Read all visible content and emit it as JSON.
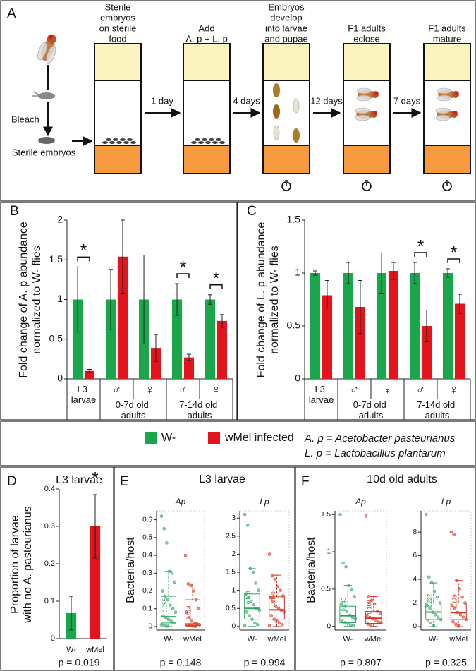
{
  "figure": {
    "panel_a": {
      "label": "A",
      "bleach": "Bleach",
      "sterile_embryos": "Sterile embryos",
      "steps": [
        [
          "Sterile",
          "embryos",
          "on sterile",
          "food"
        ],
        [
          "Add",
          "A. p + L. p"
        ],
        [
          "Embryos",
          "develop",
          "into larvae",
          "and pupae"
        ],
        [
          "F1 adults",
          "eclose"
        ],
        [
          "F1 adults",
          "mature"
        ]
      ],
      "arrows": [
        "1 day",
        "4 days",
        "12 days",
        "7 days"
      ]
    },
    "legend_notes": [
      "A. p = Acetobacter pasteurianus",
      "L. p = Lactobacillus plantarum"
    ]
  },
  "chart_data": [
    {
      "type": "bar",
      "panel_label": "B",
      "ylabel": [
        "Fold change of A. p abundance",
        "normalized to W- flies"
      ],
      "categories": [
        "L3 larvae",
        "♂",
        "♀",
        "♂",
        "♀"
      ],
      "groups": [
        {
          "label": "0-7d old adults",
          "members": [
            1,
            2
          ]
        },
        {
          "label": "7-14d old adults",
          "members": [
            3,
            4
          ]
        }
      ],
      "series": [
        {
          "name": "W-",
          "color": "#1aa64a",
          "values": [
            1,
            1,
            1,
            1,
            1
          ],
          "errors": [
            0.41,
            0.38,
            0.56,
            0.2,
            0.06
          ]
        },
        {
          "name": "wMel infected",
          "color": "#e3141b",
          "values": [
            0.1,
            1.54,
            0.39,
            0.27,
            0.73
          ],
          "errors": [
            0.02,
            0.46,
            0.17,
            0.04,
            0.08
          ]
        }
      ],
      "significance": [
        {
          "category": 0,
          "label": "*"
        },
        {
          "category": 3,
          "label": "*"
        },
        {
          "category": 4,
          "label": "*"
        }
      ],
      "ylim": [
        0,
        2
      ],
      "yticks": [
        0,
        0.5,
        1,
        1.5,
        2
      ]
    },
    {
      "type": "bar",
      "panel_label": "C",
      "ylabel": [
        "Fold change of L. p abundance",
        "normalized to W- flies"
      ],
      "categories": [
        "L3 larvae",
        "♂",
        "♀",
        "♂",
        "♀"
      ],
      "groups": [
        {
          "label": "0-7d old adults",
          "members": [
            1,
            2
          ]
        },
        {
          "label": "7-14d old adults",
          "members": [
            3,
            4
          ]
        }
      ],
      "series": [
        {
          "name": "W-",
          "color": "#1aa64a",
          "values": [
            1,
            1,
            1,
            1,
            1
          ],
          "errors": [
            0.02,
            0.1,
            0.19,
            0.1,
            0.04
          ]
        },
        {
          "name": "wMel infected",
          "color": "#e3141b",
          "values": [
            0.79,
            0.68,
            1.02,
            0.5,
            0.71
          ],
          "errors": [
            0.14,
            0.25,
            0.08,
            0.15,
            0.09
          ]
        }
      ],
      "significance": [
        {
          "category": 3,
          "label": "*"
        },
        {
          "category": 4,
          "label": "*"
        }
      ],
      "ylim": [
        0,
        1.5
      ],
      "yticks": [
        0,
        0.5,
        1,
        1.5
      ]
    },
    {
      "type": "bar",
      "panel_label": "D",
      "panel_title": "L3 larvae",
      "ylabel": [
        "Proportion of larvae",
        "with no A. pasteurianus"
      ],
      "categories": [
        "W-",
        "wMel"
      ],
      "values": [
        0.068,
        0.3
      ],
      "errors": [
        0.045,
        0.085
      ],
      "colors": [
        "#1aa64a",
        "#e3141b"
      ],
      "significance": [
        {
          "category": 1,
          "label": "*"
        }
      ],
      "ylim": [
        0,
        0.4
      ],
      "yticks": [
        0,
        0.1,
        0.2,
        0.3,
        0.4
      ],
      "note": "p = 0.019"
    },
    {
      "type": "box",
      "panel_label": "E",
      "panel_title": "L3 larvae",
      "ylabel": "Bacteria/host",
      "title": "Ap",
      "categories": [
        "W-",
        "wMel"
      ],
      "boxes": [
        {
          "color": "#2ca25f",
          "median": 0.055,
          "median_label": "0.055",
          "q1": 0.02,
          "q3": 0.17,
          "whisker_low": 0,
          "whisker_high": 0.31,
          "points": [
            0.62,
            0.55,
            0.47,
            0.31,
            0.3,
            0.25,
            0.2,
            0.17,
            0.15,
            0.12,
            0.1,
            0.08,
            0.06,
            0.05,
            0.04,
            0.03,
            0.02,
            0.01,
            0.005,
            0.002
          ]
        },
        {
          "color": "#d7301f",
          "median": 0.014,
          "median_label": "0.014",
          "q1": 0.005,
          "q3": 0.15,
          "whisker_low": 0,
          "whisker_high": 0.24,
          "points": [
            0.4,
            0.24,
            0.23,
            0.2,
            0.15,
            0.1,
            0.08,
            0.05,
            0.03,
            0.02,
            0.015,
            0.01,
            0.008,
            0.005,
            0.003,
            0.001
          ]
        }
      ],
      "ylim": [
        -0.02,
        0.65
      ],
      "yticks": [
        0,
        0.1,
        0.2,
        0.3,
        0.4,
        0.5,
        0.6
      ],
      "note": "p = 0.148"
    },
    {
      "type": "box",
      "title": "Lp",
      "categories": [
        "W-",
        "wMel"
      ],
      "boxes": [
        {
          "color": "#2ca25f",
          "median": 0.501,
          "median_label": "0.501",
          "q1": 0.2,
          "q3": 0.9,
          "whisker_low": 0,
          "whisker_high": 1.6,
          "points": [
            3.1,
            2.8,
            1.6,
            1.5,
            1.2,
            1.0,
            0.9,
            0.8,
            0.7,
            0.6,
            0.5,
            0.45,
            0.4,
            0.3,
            0.2,
            0.1,
            0.05,
            0.02
          ]
        },
        {
          "color": "#d7301f",
          "median": 0.46,
          "median_label": "0.460",
          "q1": 0.2,
          "q3": 0.82,
          "whisker_low": 0,
          "whisker_high": 1.42,
          "points": [
            2.0,
            1.4,
            1.3,
            1.1,
            1.0,
            0.85,
            0.8,
            0.7,
            0.55,
            0.5,
            0.45,
            0.4,
            0.3,
            0.2,
            0.15,
            0.1,
            0.05,
            0.02
          ]
        }
      ],
      "ylim": [
        -0.1,
        3.2
      ],
      "yticks": [
        0,
        0.5,
        1,
        1.5,
        2,
        2.5,
        3
      ],
      "note": "p = 0.994"
    },
    {
      "type": "box",
      "panel_label": "F",
      "panel_title": "10d old adults",
      "ylabel": "Bacteria/host",
      "title": "Ap",
      "categories": [
        "W-",
        "wMel"
      ],
      "boxes": [
        {
          "color": "#2ca25f",
          "median": 0.143,
          "median_label": "0.143",
          "q1": 0.05,
          "q3": 0.27,
          "whisker_low": 0,
          "whisker_high": 0.55,
          "points": [
            1.5,
            0.85,
            0.8,
            0.55,
            0.5,
            0.4,
            0.3,
            0.27,
            0.2,
            0.15,
            0.12,
            0.1,
            0.08,
            0.05,
            0.04,
            0.02,
            0.01
          ]
        },
        {
          "color": "#d7301f",
          "median": 0.108,
          "median_label": "0.108",
          "q1": 0.04,
          "q3": 0.2,
          "whisker_low": 0,
          "whisker_high": 0.4,
          "points": [
            1.48,
            0.4,
            0.35,
            0.3,
            0.2,
            0.18,
            0.15,
            0.12,
            0.1,
            0.08,
            0.06,
            0.05,
            0.03,
            0.01
          ]
        }
      ],
      "ylim": [
        -0.05,
        1.55
      ],
      "yticks": [
        0,
        0.5,
        1,
        1.5
      ],
      "note": "p = 0.807"
    },
    {
      "type": "box",
      "title": "Lp",
      "categories": [
        "W-",
        "wMel"
      ],
      "boxes": [
        {
          "color": "#2ca25f",
          "median": 1.227,
          "median_label": "1.227",
          "q1": 0.6,
          "q3": 2,
          "whisker_low": 0,
          "whisker_high": 3.7,
          "points": [
            9.5,
            4.2,
            3.7,
            3.0,
            2.5,
            2.0,
            1.8,
            1.5,
            1.2,
            1.0,
            0.8,
            0.6,
            0.5,
            0.3,
            0.1
          ]
        },
        {
          "color": "#d7301f",
          "median": 1.179,
          "median_label": "1.179",
          "q1": 0.6,
          "q3": 2,
          "whisker_low": 0,
          "whisker_high": 3.9,
          "points": [
            8.0,
            7.8,
            3.9,
            3.2,
            2.5,
            2.0,
            1.8,
            1.5,
            1.2,
            1.0,
            0.8,
            0.6,
            0.4,
            0.2,
            0.05
          ]
        }
      ],
      "ylim": [
        -0.3,
        9.8
      ],
      "yticks": [
        0,
        2,
        4,
        6,
        8
      ],
      "note": "p = 0.325"
    }
  ]
}
